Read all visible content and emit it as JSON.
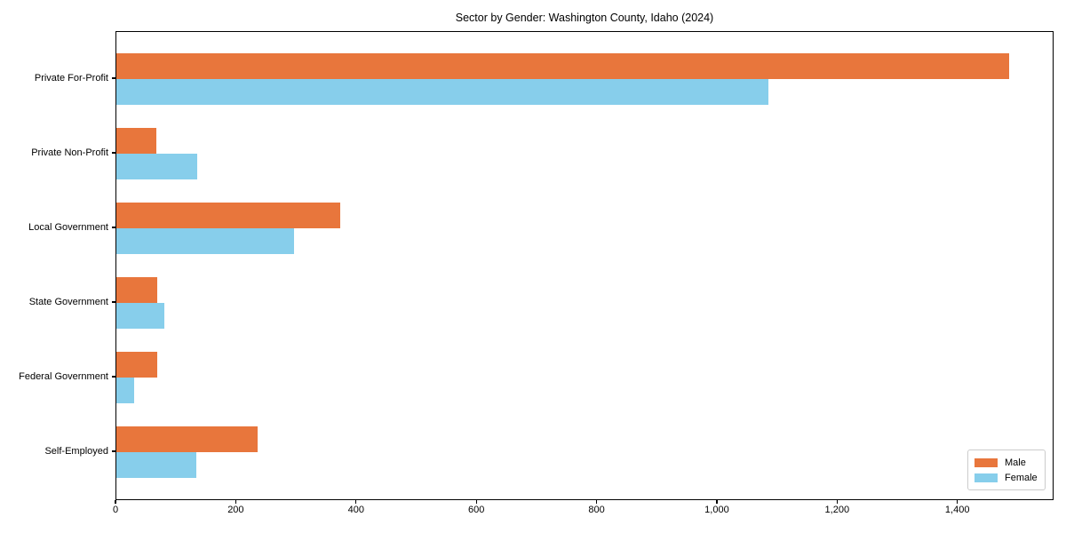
{
  "chart_data": {
    "type": "bar",
    "orientation": "horizontal",
    "title": "Sector by Gender: Washington County, Idaho (2024)",
    "categories": [
      "Private For-Profit",
      "Private Non-Profit",
      "Local Government",
      "State Government",
      "Federal Government",
      "Self-Employed"
    ],
    "series": [
      {
        "name": "Male",
        "color": "#e8763c",
        "values": [
          1485,
          66,
          372,
          68,
          68,
          235
        ]
      },
      {
        "name": "Female",
        "color": "#87ceeb",
        "values": [
          1085,
          135,
          295,
          80,
          29,
          133
        ]
      }
    ],
    "xlabel": "",
    "ylabel": "",
    "xlim": [
      0,
      1560
    ],
    "xticks": [
      0,
      200,
      400,
      600,
      800,
      1000,
      1200,
      1400
    ],
    "xtick_labels": [
      "0",
      "200",
      "400",
      "600",
      "800",
      "1,000",
      "1,200",
      "1,400"
    ],
    "legend": {
      "entries": [
        "Male",
        "Female"
      ],
      "position": "lower right"
    },
    "grid": false,
    "colors": {
      "spine": "#000000",
      "background": "#ffffff",
      "legend_border": "#cccccc"
    }
  }
}
